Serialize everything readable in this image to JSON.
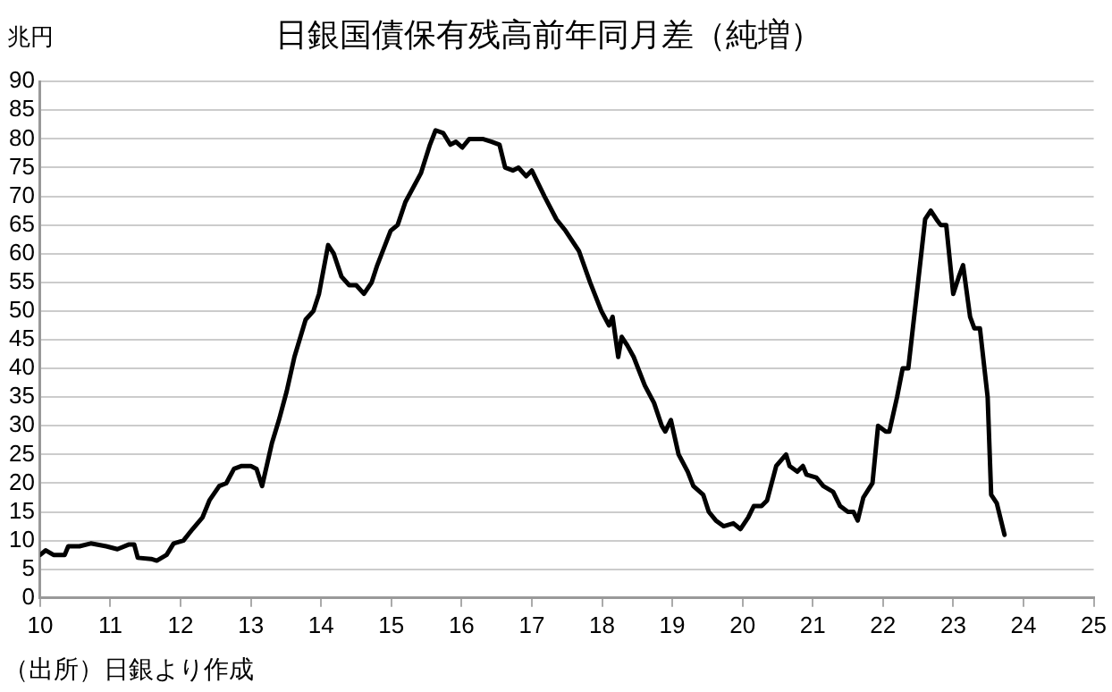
{
  "chart_data": {
    "type": "line",
    "title": "日銀国債保有残高前年同月差（純増）",
    "ylabel": "兆円",
    "annotations": [
      "（出所）日銀より作成"
    ],
    "x": [
      10.0,
      10.08,
      10.19,
      10.35,
      10.4,
      10.56,
      10.72,
      10.94,
      11.1,
      11.26,
      11.34,
      11.39,
      11.58,
      11.66,
      11.8,
      11.9,
      12.04,
      12.17,
      12.31,
      12.41,
      12.55,
      12.65,
      12.76,
      12.87,
      13.0,
      13.08,
      13.16,
      13.3,
      13.4,
      13.51,
      13.62,
      13.78,
      13.89,
      13.97,
      14.1,
      14.18,
      14.29,
      14.4,
      14.5,
      14.61,
      14.72,
      14.8,
      14.99,
      15.09,
      15.2,
      15.42,
      15.55,
      15.63,
      15.74,
      15.84,
      15.92,
      16.01,
      16.11,
      16.3,
      16.43,
      16.54,
      16.62,
      16.73,
      16.81,
      16.92,
      17.0,
      17.18,
      17.35,
      17.48,
      17.67,
      17.83,
      17.99,
      18.1,
      18.15,
      18.23,
      18.28,
      18.36,
      18.45,
      18.61,
      18.74,
      18.85,
      18.9,
      18.98,
      19.09,
      19.22,
      19.3,
      19.44,
      19.52,
      19.62,
      19.73,
      19.87,
      19.97,
      20.08,
      20.16,
      20.27,
      20.35,
      20.48,
      20.62,
      20.67,
      20.78,
      20.86,
      20.91,
      21.05,
      21.15,
      21.29,
      21.39,
      21.5,
      21.58,
      21.64,
      21.72,
      21.85,
      21.93,
      22.04,
      22.09,
      22.2,
      22.28,
      22.36,
      22.49,
      22.6,
      22.68,
      22.76,
      22.82,
      22.9,
      23.0,
      23.08,
      23.14,
      23.24,
      23.3,
      23.38,
      23.49,
      23.54,
      23.62,
      23.73
    ],
    "series": [
      {
        "color": "#000000",
        "values": [
          7.5,
          8.3,
          7.5,
          7.5,
          9,
          9,
          9.5,
          9,
          8.5,
          9.3,
          9.3,
          7,
          6.8,
          6.5,
          7.5,
          9.5,
          10,
          12,
          14,
          17,
          19.5,
          20,
          22.5,
          23,
          23,
          22.5,
          19.5,
          27,
          31,
          36,
          42,
          48.5,
          50,
          53,
          61.5,
          60,
          56,
          54.5,
          54.5,
          53,
          55,
          58,
          64,
          65,
          69,
          74,
          79,
          81.5,
          81,
          79,
          79.5,
          78.5,
          80,
          80,
          79.5,
          79,
          75,
          74.5,
          75,
          73.5,
          74.5,
          70,
          66,
          64,
          60.5,
          55,
          50,
          47.5,
          49,
          42,
          45.5,
          44,
          42,
          37,
          34,
          30,
          29,
          31,
          25,
          22,
          19.5,
          18,
          15,
          13.5,
          12.5,
          13,
          12,
          14,
          16,
          16,
          17,
          23,
          25,
          23,
          22,
          23,
          21.5,
          21,
          19.5,
          18.5,
          16,
          15,
          15,
          13.5,
          17.5,
          20,
          30,
          29,
          29,
          35,
          40,
          40,
          54,
          66,
          67.5,
          66,
          65,
          65,
          53,
          56,
          58,
          49,
          47,
          47,
          35,
          18,
          16.5,
          11
        ]
      }
    ],
    "xlim": [
      10,
      25
    ],
    "xticks": [
      10,
      11,
      12,
      13,
      14,
      15,
      16,
      17,
      18,
      19,
      20,
      21,
      22,
      23,
      24,
      25
    ],
    "ylim": [
      0,
      90
    ],
    "yticks": [
      0,
      5,
      10,
      15,
      20,
      25,
      30,
      35,
      40,
      45,
      50,
      55,
      60,
      65,
      70,
      75,
      80,
      85,
      90
    ],
    "grid": "y",
    "legend": false,
    "marker": "none",
    "line_style": "solid"
  }
}
